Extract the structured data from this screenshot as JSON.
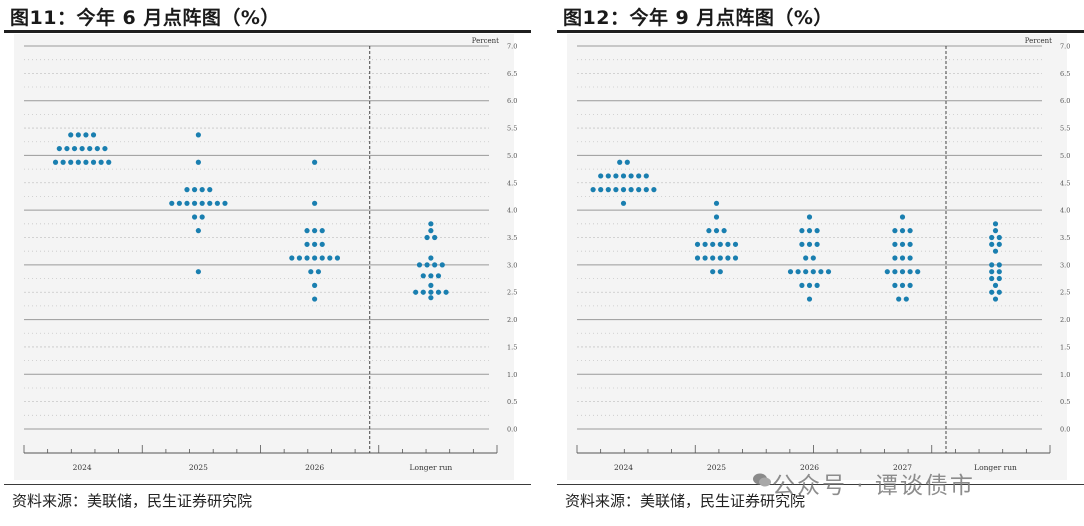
{
  "charts": [
    {
      "figure_title": "图11：今年 6 月点阵图（%）",
      "source_note": "资料来源：美联储，民生证券研究院"
    },
    {
      "figure_title": "图12：今年 9 月点阵图（%）",
      "source_note": "资料来源：美联储，民生证券研究院"
    }
  ],
  "watermark": "公众号 · 谭谈债市",
  "colors": {
    "dot": "#1a7fb0",
    "title_rule": "#1f1f1f",
    "plot_bg": "#f4f4f4"
  },
  "chart_data": [
    {
      "type": "scatter",
      "title": "",
      "ylabel": "Percent",
      "ylim": [
        0,
        7
      ],
      "yticks": [
        "0.0",
        "0.5",
        "1.0",
        "1.5",
        "2.0",
        "2.5",
        "3.0",
        "3.5",
        "4.0",
        "4.5",
        "5.0",
        "5.5",
        "6.0",
        "6.5",
        "7.0"
      ],
      "categories": [
        "2024",
        "2025",
        "2026",
        "Longer run"
      ],
      "grid": true,
      "series": [
        {
          "category": "2024",
          "points": [
            {
              "y": 5.375,
              "n": 4
            },
            {
              "y": 5.125,
              "n": 7
            },
            {
              "y": 4.875,
              "n": 8
            }
          ]
        },
        {
          "category": "2025",
          "points": [
            {
              "y": 5.375,
              "n": 1
            },
            {
              "y": 4.875,
              "n": 1
            },
            {
              "y": 4.375,
              "n": 4
            },
            {
              "y": 4.125,
              "n": 8
            },
            {
              "y": 3.875,
              "n": 2
            },
            {
              "y": 3.625,
              "n": 1
            },
            {
              "y": 2.875,
              "n": 1
            }
          ]
        },
        {
          "category": "2026",
          "points": [
            {
              "y": 4.875,
              "n": 1
            },
            {
              "y": 4.125,
              "n": 1
            },
            {
              "y": 3.625,
              "n": 3
            },
            {
              "y": 3.375,
              "n": 3
            },
            {
              "y": 3.125,
              "n": 7
            },
            {
              "y": 2.875,
              "n": 2
            },
            {
              "y": 2.625,
              "n": 1
            },
            {
              "y": 2.375,
              "n": 1
            }
          ]
        },
        {
          "category": "Longer run",
          "points": [
            {
              "y": 3.75,
              "n": 1
            },
            {
              "y": 3.625,
              "n": 1
            },
            {
              "y": 3.5,
              "n": 2
            },
            {
              "y": 3.0,
              "n": 4
            },
            {
              "y": 3.125,
              "n": 1
            },
            {
              "y": 2.8,
              "n": 3
            },
            {
              "y": 2.625,
              "n": 1
            },
            {
              "y": 2.5,
              "n": 5
            },
            {
              "y": 2.4,
              "n": 1
            }
          ]
        }
      ]
    },
    {
      "type": "scatter",
      "title": "",
      "ylabel": "Percent",
      "ylim": [
        0,
        7
      ],
      "yticks": [
        "0.0",
        "0.5",
        "1.0",
        "1.5",
        "2.0",
        "2.5",
        "3.0",
        "3.5",
        "4.0",
        "4.5",
        "5.0",
        "5.5",
        "6.0",
        "6.5",
        "7.0"
      ],
      "categories": [
        "2024",
        "2025",
        "2026",
        "2027",
        "Longer run"
      ],
      "grid": true,
      "series": [
        {
          "category": "2024",
          "points": [
            {
              "y": 4.875,
              "n": 2
            },
            {
              "y": 4.625,
              "n": 7
            },
            {
              "y": 4.375,
              "n": 9
            },
            {
              "y": 4.125,
              "n": 1
            }
          ]
        },
        {
          "category": "2025",
          "points": [
            {
              "y": 4.125,
              "n": 1
            },
            {
              "y": 3.875,
              "n": 1
            },
            {
              "y": 3.625,
              "n": 3
            },
            {
              "y": 3.375,
              "n": 6
            },
            {
              "y": 3.125,
              "n": 6
            },
            {
              "y": 2.875,
              "n": 2
            }
          ]
        },
        {
          "category": "2026",
          "points": [
            {
              "y": 3.875,
              "n": 1
            },
            {
              "y": 3.625,
              "n": 3
            },
            {
              "y": 3.375,
              "n": 3
            },
            {
              "y": 3.125,
              "n": 2
            },
            {
              "y": 2.875,
              "n": 6
            },
            {
              "y": 2.625,
              "n": 3
            },
            {
              "y": 2.375,
              "n": 1
            }
          ]
        },
        {
          "category": "2027",
          "points": [
            {
              "y": 3.875,
              "n": 1
            },
            {
              "y": 3.625,
              "n": 3
            },
            {
              "y": 3.375,
              "n": 3
            },
            {
              "y": 3.125,
              "n": 3
            },
            {
              "y": 2.875,
              "n": 5
            },
            {
              "y": 2.625,
              "n": 3
            },
            {
              "y": 2.375,
              "n": 2
            }
          ]
        },
        {
          "category": "Longer run",
          "points": [
            {
              "y": 3.75,
              "n": 1
            },
            {
              "y": 3.625,
              "n": 1
            },
            {
              "y": 3.5,
              "n": 2
            },
            {
              "y": 3.375,
              "n": 2
            },
            {
              "y": 3.25,
              "n": 1
            },
            {
              "y": 3.0,
              "n": 2
            },
            {
              "y": 2.875,
              "n": 2
            },
            {
              "y": 2.75,
              "n": 2
            },
            {
              "y": 2.625,
              "n": 1
            },
            {
              "y": 2.5,
              "n": 2
            },
            {
              "y": 2.375,
              "n": 1
            }
          ]
        }
      ]
    }
  ]
}
